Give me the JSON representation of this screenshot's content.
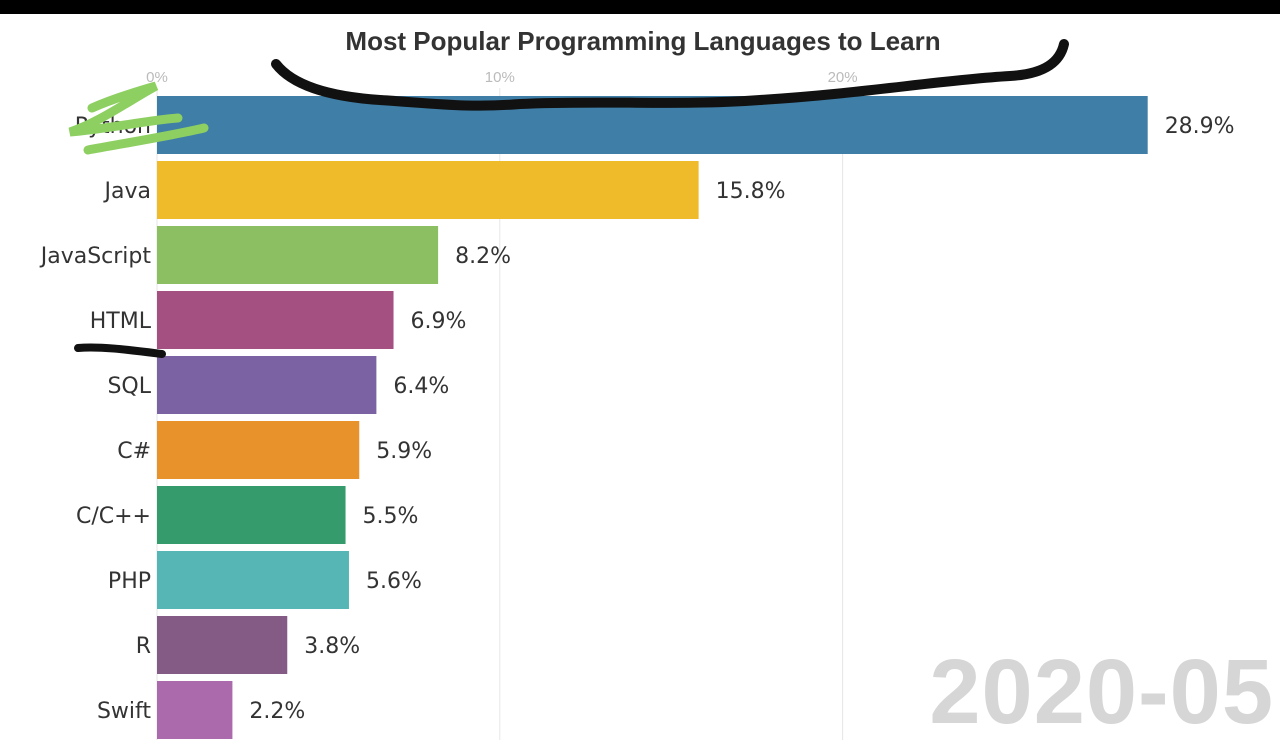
{
  "chart_data": {
    "type": "bar",
    "orientation": "horizontal",
    "title": "Most Popular Programming Languages to Learn",
    "period": "2020-05",
    "categories": [
      "Python",
      "Java",
      "JavaScript",
      "HTML",
      "SQL",
      "C#",
      "C/C++",
      "PHP",
      "R",
      "Swift"
    ],
    "values": [
      28.9,
      15.8,
      8.2,
      6.9,
      6.4,
      5.9,
      5.5,
      5.6,
      3.8,
      2.2
    ],
    "value_labels": [
      "28.9%",
      "15.8%",
      "8.2%",
      "6.9%",
      "6.4%",
      "5.9%",
      "5.5%",
      "5.6%",
      "3.8%",
      "2.2%"
    ],
    "colors": [
      "#3f7ea6",
      "#f0bb2b",
      "#8cbf62",
      "#a45081",
      "#7a62a3",
      "#e8922b",
      "#359a6c",
      "#56b6b5",
      "#835b84",
      "#ab6aab"
    ],
    "xticks": [
      0,
      10,
      20
    ],
    "xtick_labels": [
      "0%",
      "10%",
      "20%"
    ],
    "xlim": [
      0,
      29.5
    ],
    "xlabel": "",
    "ylabel": "",
    "grid": true,
    "legend": "none"
  }
}
